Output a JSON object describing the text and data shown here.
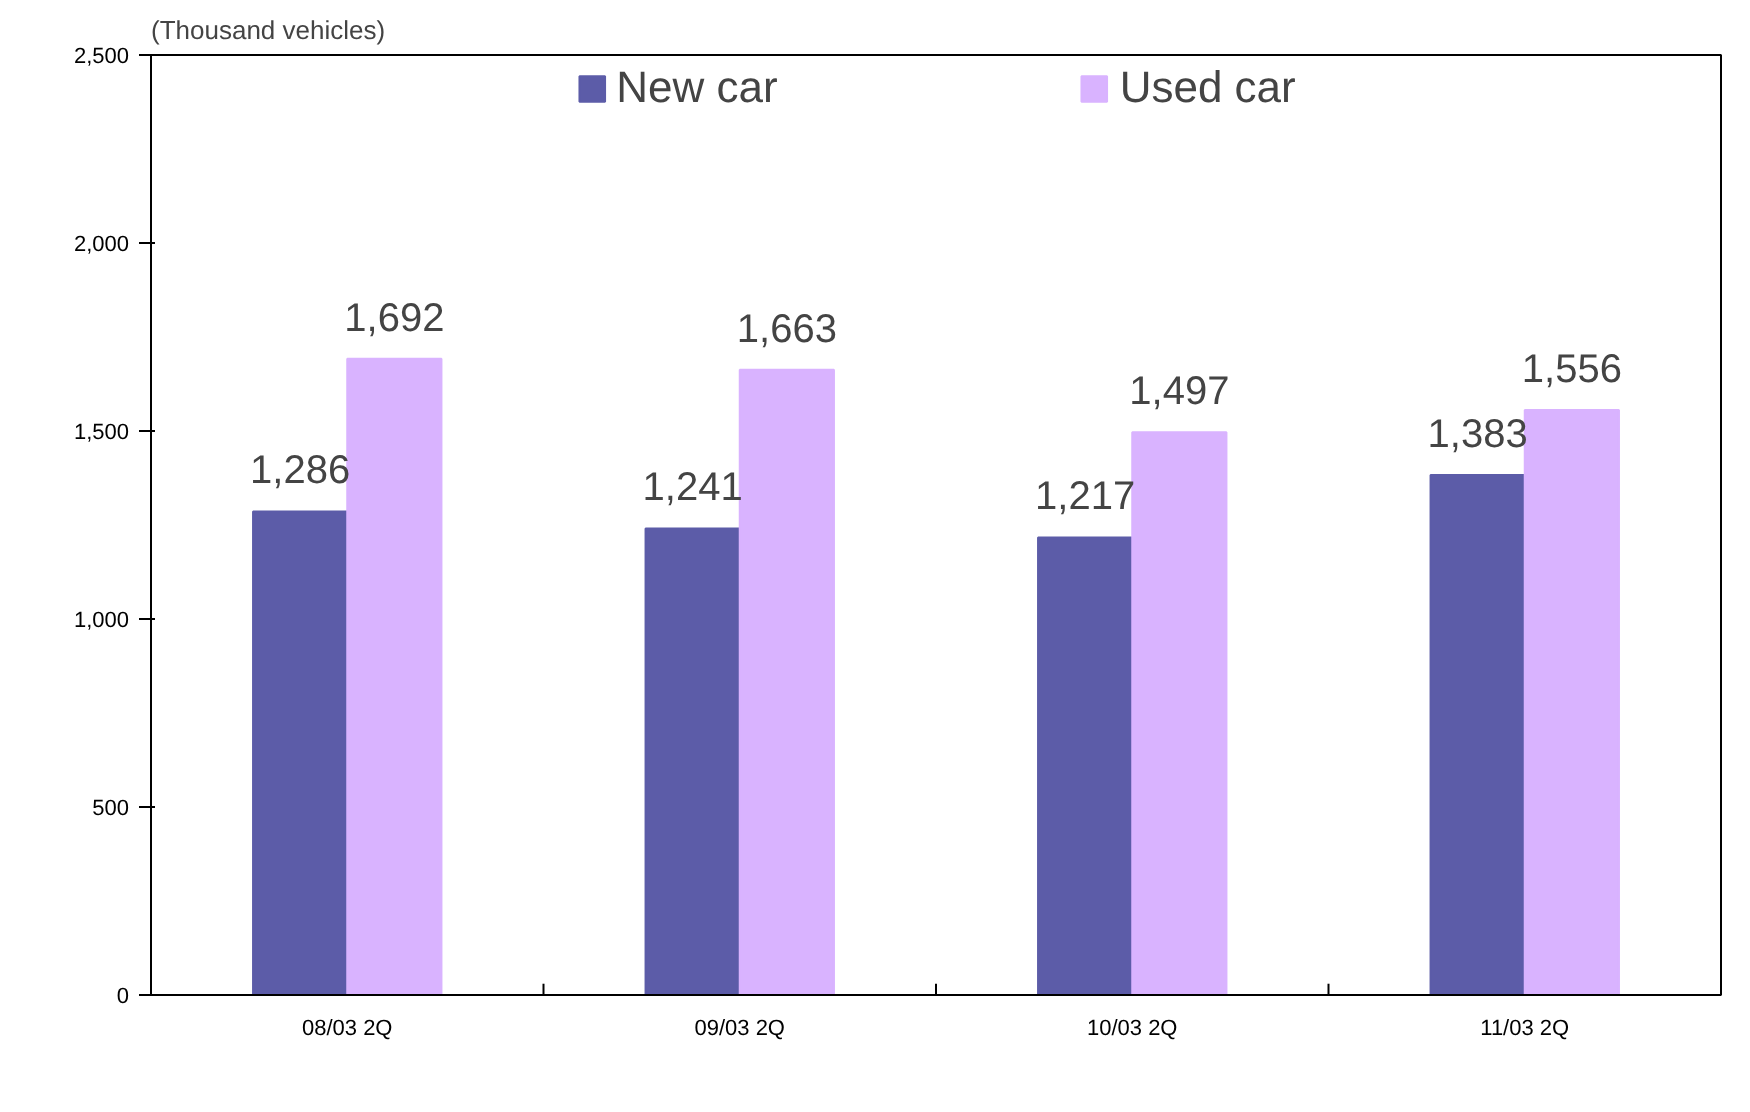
{
  "chart_data": {
    "type": "bar",
    "ylabel": "(Thousand vehicles)",
    "categories": [
      "08/03 2Q",
      "09/03 2Q",
      "10/03 2Q",
      "11/03 2Q"
    ],
    "series": [
      {
        "name": "New car",
        "color": "#5c5ca8",
        "values": [
          1286,
          1241,
          1217,
          1383
        ],
        "value_labels": [
          "1,286",
          "1,241",
          "1,217",
          "1,383"
        ]
      },
      {
        "name": "Used car",
        "color": "#d9b3ff",
        "values": [
          1692,
          1663,
          1497,
          1556
        ],
        "value_labels": [
          "1,692",
          "1,663",
          "1,497",
          "1,556"
        ]
      }
    ],
    "ylim": [
      0,
      2500
    ],
    "yticks": [
      {
        "value": 0,
        "label": "0"
      },
      {
        "value": 500,
        "label": "500"
      },
      {
        "value": 1000,
        "label": "1,000"
      },
      {
        "value": 1500,
        "label": "1,500"
      },
      {
        "value": 2000,
        "label": "2,000"
      },
      {
        "value": 2500,
        "label": "2,500"
      }
    ],
    "grid": false,
    "legend": "top"
  }
}
